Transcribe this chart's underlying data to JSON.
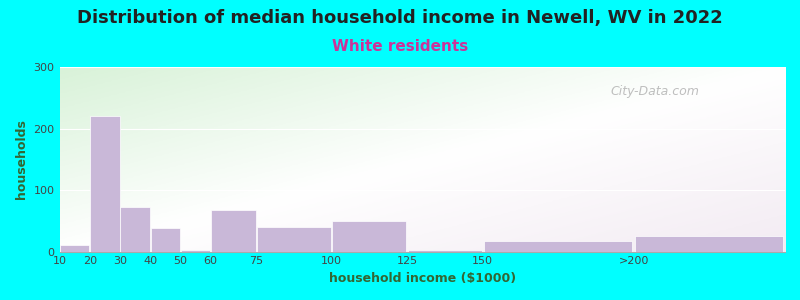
{
  "title": "Distribution of median household income in Newell, WV in 2022",
  "subtitle": "White residents",
  "xlabel": "household income ($1000)",
  "ylabel": "households",
  "background_color": "#00ffff",
  "bar_color": "#c9b8d8",
  "title_fontsize": 13,
  "subtitle_fontsize": 11,
  "subtitle_color": "#cc3399",
  "ylabel_color": "#336633",
  "xlabel_color": "#336633",
  "categories": [
    "10",
    "20",
    "30",
    "40",
    "50",
    "60",
    "75",
    "100",
    "125",
    "150",
    ">200"
  ],
  "values": [
    10,
    220,
    72,
    38,
    2,
    68,
    40,
    50,
    2,
    18,
    25
  ],
  "ylim": [
    0,
    300
  ],
  "yticks": [
    0,
    100,
    200,
    300
  ],
  "xtick_positions": [
    10,
    20,
    30,
    40,
    50,
    60,
    75,
    100,
    125,
    150,
    200
  ],
  "xtick_labels": [
    "10",
    "20",
    "30",
    "40",
    "50",
    "60",
    "75",
    "100",
    "125",
    "150",
    ">200"
  ],
  "bar_centers": [
    15,
    25,
    35,
    45,
    55,
    67.5,
    87.5,
    112.5,
    137.5,
    175,
    225
  ],
  "bar_widths": [
    10,
    10,
    10,
    10,
    10,
    15,
    25,
    25,
    25,
    50,
    50
  ],
  "xlim": [
    10,
    250
  ],
  "watermark": "City-Data.com"
}
